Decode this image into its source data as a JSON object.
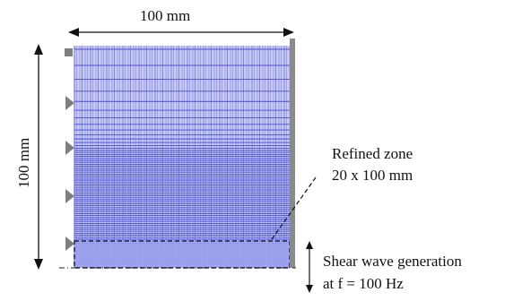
{
  "labels": {
    "width": "100 mm",
    "height": "100 mm",
    "refined_zone_line1": "Refined zone",
    "refined_zone_line2": "20 x 100 mm",
    "shear_line1": "Shear wave generation",
    "shear_line2": "at f = 100 Hz"
  },
  "colors": {
    "mesh_fill": "#c7caf3",
    "mesh_lines": "#4a4fd6",
    "refined_fill": "#9fa3ee",
    "wall": "#8a8a8a",
    "support": "#7f7f7f",
    "ink": "#111111"
  },
  "icons": {
    "supports": "triangle-roller-icon",
    "fixed_corner": "square-anchor-icon",
    "wall": "rigid-wall-icon"
  }
}
